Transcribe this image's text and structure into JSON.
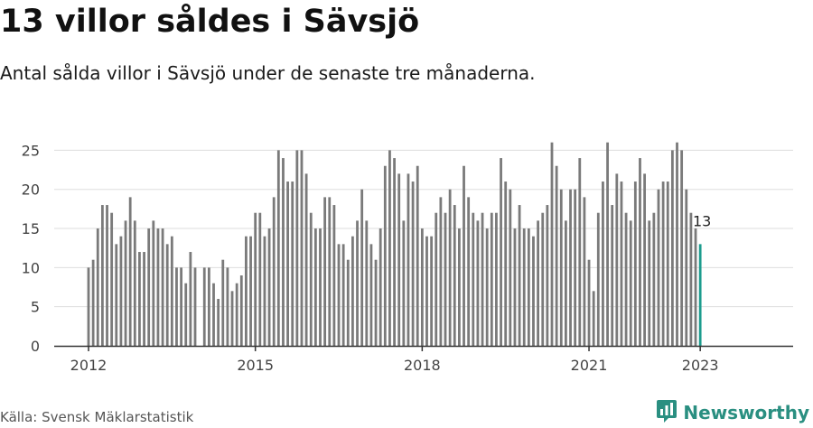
{
  "title": "13 villor såldes i Sävsjö",
  "subtitle": "Antal sålda villor i Sävsjö under de senaste tre månaderna.",
  "source": "Källa: Svensk Mäklarstatistik",
  "brand": {
    "name": "Newsworthy",
    "logo_icon": "bar-chart-logo-icon"
  },
  "colors": {
    "bar": "#7a7a7a",
    "highlight": "#1d9c8e",
    "grid": "#dddddd",
    "axis": "#333333",
    "brand": "#2a8f81"
  },
  "chart_data": {
    "type": "bar",
    "title": "13 villor såldes i Sävsjö",
    "subtitle": "Antal sålda villor i Sävsjö under de senaste tre månaderna.",
    "xlabel": "",
    "ylabel": "",
    "ylim": [
      0,
      27
    ],
    "yticks": [
      0,
      5,
      10,
      15,
      20,
      25
    ],
    "xticks": [
      "2012",
      "2015",
      "2018",
      "2021",
      "2023"
    ],
    "grid": true,
    "start": "2012-01",
    "end": "2023-01",
    "values": [
      10,
      11,
      15,
      18,
      18,
      17,
      13,
      14,
      16,
      19,
      16,
      12,
      12,
      15,
      16,
      15,
      15,
      13,
      14,
      10,
      10,
      8,
      12,
      10,
      null,
      10,
      10,
      8,
      6,
      11,
      10,
      7,
      8,
      9,
      14,
      14,
      17,
      17,
      14,
      15,
      19,
      25,
      24,
      21,
      21,
      25,
      25,
      22,
      17,
      15,
      15,
      19,
      19,
      18,
      13,
      13,
      11,
      14,
      16,
      20,
      16,
      13,
      11,
      15,
      23,
      25,
      24,
      22,
      16,
      22,
      21,
      23,
      15,
      14,
      14,
      17,
      19,
      17,
      20,
      18,
      15,
      23,
      19,
      17,
      16,
      17,
      15,
      17,
      17,
      24,
      21,
      20,
      15,
      18,
      15,
      15,
      14,
      16,
      17,
      18,
      26,
      23,
      20,
      16,
      20,
      20,
      24,
      19,
      11,
      7,
      17,
      21,
      26,
      18,
      22,
      21,
      17,
      16,
      21,
      24,
      22,
      16,
      17,
      20,
      21,
      21,
      25,
      26,
      25,
      20,
      17,
      15,
      13
    ],
    "highlight": {
      "label": "13",
      "value": 13,
      "date": "2023-01"
    }
  }
}
